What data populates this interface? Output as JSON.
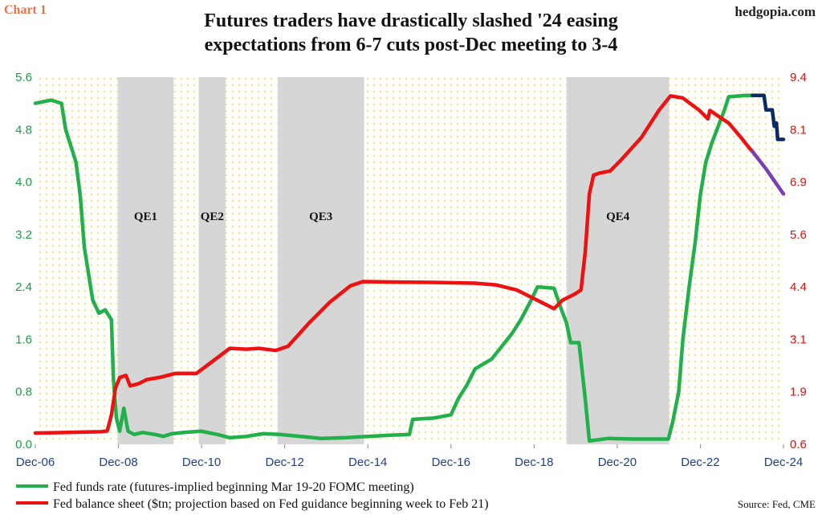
{
  "header": {
    "tag": "Chart 1",
    "brand": "hedgopia.com",
    "title_line1": "Futures traders have drastically slashed '24 easing",
    "title_line2": "expectations from 6-7 cuts post-Dec meeting to 3-4"
  },
  "source": "Source: Fed, CME",
  "colors": {
    "fed_funds": "#22b04b",
    "balance_sheet": "#ee1111",
    "fed_funds_projection": "#0d2a66",
    "balance_projection": "#7a3fb5",
    "shading": "#d6d6d6",
    "background_dots": "#f2e86a"
  },
  "chart_data": {
    "type": "line",
    "x_ticks": [
      "Dec-06",
      "Dec-08",
      "Dec-10",
      "Dec-12",
      "Dec-14",
      "Dec-16",
      "Dec-18",
      "Dec-20",
      "Dec-22",
      "Dec-24"
    ],
    "xlim": [
      2006.92,
      2024.92
    ],
    "y_left": {
      "ylim": [
        0.0,
        5.6
      ],
      "ticks": [
        "0.0",
        "0.8",
        "1.6",
        "2.4",
        "3.2",
        "4.0",
        "4.8",
        "5.6"
      ]
    },
    "y_right": {
      "ylim": [
        0.6,
        9.4
      ],
      "ticks": [
        "0.6",
        "1.9",
        "3.1",
        "4.4",
        "5.6",
        "6.9",
        "8.1",
        "9.4"
      ]
    },
    "shaded_regions": [
      {
        "label": "QE1",
        "start": 2008.9,
        "end": 2010.25
      },
      {
        "label": "QE2",
        "start": 2010.85,
        "end": 2011.5
      },
      {
        "label": "QE3",
        "start": 2012.75,
        "end": 2014.83
      },
      {
        "label": "QE4",
        "start": 2019.7,
        "end": 2022.17
      }
    ],
    "series": [
      {
        "name": "Fed funds rate (futures-implied beginning Mar 19-20 FOMC meeting)",
        "axis": "left",
        "points": [
          [
            2006.92,
            5.2
          ],
          [
            2007.3,
            5.25
          ],
          [
            2007.55,
            5.2
          ],
          [
            2007.65,
            4.8
          ],
          [
            2007.8,
            4.5
          ],
          [
            2007.9,
            4.3
          ],
          [
            2008.0,
            3.8
          ],
          [
            2008.1,
            3.0
          ],
          [
            2008.2,
            2.6
          ],
          [
            2008.3,
            2.2
          ],
          [
            2008.45,
            2.0
          ],
          [
            2008.6,
            2.05
          ],
          [
            2008.75,
            1.9
          ],
          [
            2008.8,
            1.0
          ],
          [
            2008.87,
            0.4
          ],
          [
            2008.95,
            0.2
          ],
          [
            2009.05,
            0.55
          ],
          [
            2009.15,
            0.2
          ],
          [
            2009.3,
            0.15
          ],
          [
            2009.5,
            0.18
          ],
          [
            2009.8,
            0.15
          ],
          [
            2010.0,
            0.12
          ],
          [
            2010.2,
            0.16
          ],
          [
            2010.5,
            0.18
          ],
          [
            2010.9,
            0.2
          ],
          [
            2011.3,
            0.15
          ],
          [
            2011.6,
            0.1
          ],
          [
            2012.0,
            0.12
          ],
          [
            2012.4,
            0.16
          ],
          [
            2012.8,
            0.15
          ],
          [
            2013.3,
            0.12
          ],
          [
            2013.8,
            0.09
          ],
          [
            2014.4,
            0.1
          ],
          [
            2014.9,
            0.12
          ],
          [
            2015.5,
            0.14
          ],
          [
            2015.92,
            0.15
          ],
          [
            2016.0,
            0.38
          ],
          [
            2016.5,
            0.4
          ],
          [
            2016.92,
            0.45
          ],
          [
            2017.1,
            0.7
          ],
          [
            2017.3,
            0.9
          ],
          [
            2017.5,
            1.15
          ],
          [
            2017.9,
            1.3
          ],
          [
            2018.15,
            1.5
          ],
          [
            2018.4,
            1.7
          ],
          [
            2018.6,
            1.9
          ],
          [
            2018.85,
            2.2
          ],
          [
            2019.0,
            2.4
          ],
          [
            2019.4,
            2.38
          ],
          [
            2019.55,
            2.1
          ],
          [
            2019.7,
            1.85
          ],
          [
            2019.8,
            1.55
          ],
          [
            2020.0,
            1.55
          ],
          [
            2020.15,
            0.7
          ],
          [
            2020.25,
            0.05
          ],
          [
            2020.7,
            0.09
          ],
          [
            2021.3,
            0.08
          ],
          [
            2021.8,
            0.08
          ],
          [
            2022.15,
            0.08
          ],
          [
            2022.25,
            0.33
          ],
          [
            2022.4,
            0.8
          ],
          [
            2022.5,
            1.6
          ],
          [
            2022.65,
            2.4
          ],
          [
            2022.8,
            3.1
          ],
          [
            2022.92,
            3.8
          ],
          [
            2023.05,
            4.3
          ],
          [
            2023.2,
            4.6
          ],
          [
            2023.35,
            4.85
          ],
          [
            2023.5,
            5.1
          ],
          [
            2023.6,
            5.3
          ],
          [
            2024.0,
            5.32
          ],
          [
            2024.17,
            5.32
          ]
        ]
      },
      {
        "name": "",
        "axis": "left",
        "projection": true,
        "points": [
          [
            2024.17,
            5.32
          ],
          [
            2024.45,
            5.32
          ],
          [
            2024.5,
            5.1
          ],
          [
            2024.65,
            5.1
          ],
          [
            2024.7,
            4.85
          ],
          [
            2024.75,
            4.9
          ],
          [
            2024.78,
            4.65
          ],
          [
            2024.92,
            4.65
          ]
        ]
      },
      {
        "name": "Fed balance sheet ($tn; projection based on Fed guidance beginning week to Feb 21)",
        "axis": "right",
        "points": [
          [
            2006.92,
            0.87
          ],
          [
            2007.5,
            0.88
          ],
          [
            2008.0,
            0.89
          ],
          [
            2008.5,
            0.9
          ],
          [
            2008.65,
            0.92
          ],
          [
            2008.75,
            1.3
          ],
          [
            2008.85,
            1.95
          ],
          [
            2008.95,
            2.2
          ],
          [
            2009.1,
            2.25
          ],
          [
            2009.2,
            2.0
          ],
          [
            2009.4,
            2.05
          ],
          [
            2009.6,
            2.15
          ],
          [
            2009.9,
            2.2
          ],
          [
            2010.3,
            2.3
          ],
          [
            2010.8,
            2.3
          ],
          [
            2011.0,
            2.45
          ],
          [
            2011.4,
            2.75
          ],
          [
            2011.6,
            2.9
          ],
          [
            2012.0,
            2.88
          ],
          [
            2012.3,
            2.9
          ],
          [
            2012.7,
            2.85
          ],
          [
            2013.0,
            2.95
          ],
          [
            2013.5,
            3.5
          ],
          [
            2014.0,
            4.0
          ],
          [
            2014.5,
            4.4
          ],
          [
            2014.8,
            4.5
          ],
          [
            2015.5,
            4.49
          ],
          [
            2016.5,
            4.48
          ],
          [
            2017.5,
            4.46
          ],
          [
            2018.0,
            4.42
          ],
          [
            2018.5,
            4.3
          ],
          [
            2019.0,
            4.05
          ],
          [
            2019.4,
            3.85
          ],
          [
            2019.6,
            4.05
          ],
          [
            2019.9,
            4.2
          ],
          [
            2020.05,
            4.3
          ],
          [
            2020.15,
            5.2
          ],
          [
            2020.25,
            6.6
          ],
          [
            2020.35,
            7.05
          ],
          [
            2020.5,
            7.1
          ],
          [
            2020.75,
            7.15
          ],
          [
            2021.0,
            7.4
          ],
          [
            2021.5,
            7.95
          ],
          [
            2021.92,
            8.6
          ],
          [
            2022.2,
            8.95
          ],
          [
            2022.5,
            8.9
          ],
          [
            2022.9,
            8.6
          ],
          [
            2023.1,
            8.4
          ],
          [
            2023.15,
            8.6
          ],
          [
            2023.3,
            8.5
          ],
          [
            2023.6,
            8.3
          ],
          [
            2023.9,
            7.95
          ],
          [
            2024.1,
            7.7
          ],
          [
            2024.17,
            7.62
          ]
        ]
      },
      {
        "name": "",
        "axis": "right",
        "projection": true,
        "points": [
          [
            2024.17,
            7.62
          ],
          [
            2024.5,
            7.2
          ],
          [
            2024.92,
            6.6
          ]
        ]
      }
    ]
  }
}
